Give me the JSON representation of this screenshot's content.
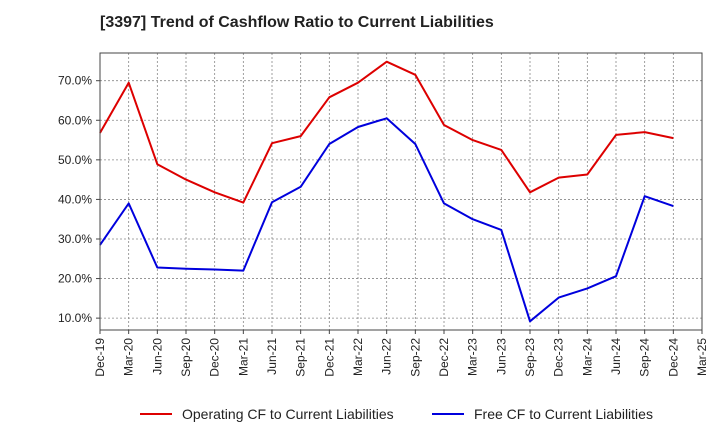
{
  "chart_data": {
    "type": "line",
    "title": "[3397]  Trend of Cashflow Ratio to Current Liabilities",
    "xlabel": "",
    "ylabel": "",
    "categories": [
      "Dec-19",
      "Mar-20",
      "Jun-20",
      "Sep-20",
      "Dec-20",
      "Mar-21",
      "Jun-21",
      "Sep-21",
      "Dec-21",
      "Mar-22",
      "Jun-22",
      "Sep-22",
      "Dec-22",
      "Mar-23",
      "Jun-23",
      "Sep-23",
      "Dec-23",
      "Mar-24",
      "Jun-24",
      "Sep-24",
      "Dec-24",
      "Mar-25"
    ],
    "y_ticks": [
      "10.0%",
      "20.0%",
      "30.0%",
      "40.0%",
      "50.0%",
      "60.0%",
      "70.0%"
    ],
    "ylim": [
      7,
      77
    ],
    "grid": true,
    "legend_position": "bottom",
    "series": [
      {
        "name": "Operating CF to Current Liabilities",
        "color": "#dd0000",
        "values": [
          56.8,
          69.5,
          48.9,
          45.0,
          41.8,
          39.2,
          54.2,
          56.0,
          65.8,
          69.5,
          74.8,
          71.5,
          58.8,
          55.0,
          52.5,
          41.8,
          45.5,
          46.3,
          56.3,
          57.0,
          55.5,
          null
        ]
      },
      {
        "name": "Free CF to Current Liabilities",
        "color": "#0000dd",
        "values": [
          28.5,
          39.0,
          22.8,
          22.5,
          22.3,
          22.0,
          39.3,
          43.2,
          54.0,
          58.3,
          60.5,
          54.0,
          39.0,
          35.0,
          32.3,
          9.2,
          15.2,
          17.5,
          20.6,
          40.8,
          38.3,
          null
        ]
      }
    ]
  }
}
